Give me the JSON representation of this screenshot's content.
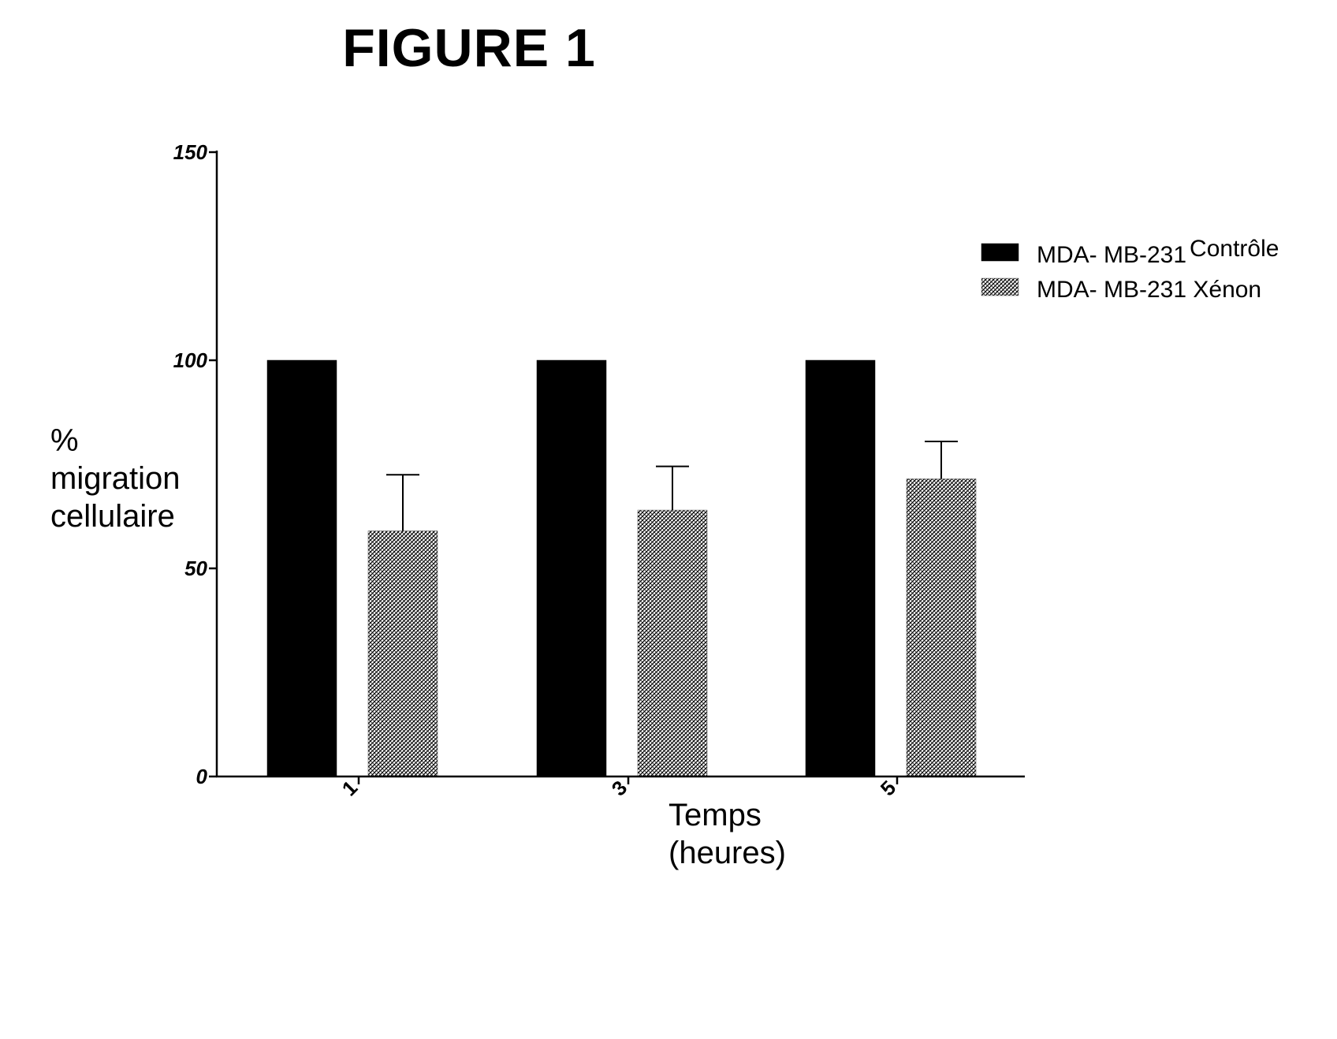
{
  "figure_title": "FIGURE 1",
  "colors": {
    "control": "#000000",
    "xenon_hatch": "#000000",
    "axis": "#000000"
  },
  "chart_data": {
    "type": "bar",
    "title": "",
    "ylabel_lines": [
      "%",
      "migration",
      "cellulaire"
    ],
    "xlabel_lines": [
      "Temps",
      "(heures)"
    ],
    "categories": [
      "1",
      "3",
      "5"
    ],
    "ylim": [
      0,
      150
    ],
    "yticks": [
      "0",
      "50",
      "100",
      "150"
    ],
    "grid": false,
    "legend_position": "top-right",
    "series": [
      {
        "name": "MDA- MB-231",
        "name_suffix": "Contrôle",
        "values": [
          100,
          100,
          100
        ],
        "errors": [
          0,
          0,
          0
        ],
        "fill": "solid"
      },
      {
        "name": "MDA- MB-231 Xénon",
        "name_suffix": "",
        "values": [
          59,
          64,
          71.5
        ],
        "errors": [
          13.5,
          10.5,
          9
        ],
        "fill": "hatch"
      }
    ]
  }
}
